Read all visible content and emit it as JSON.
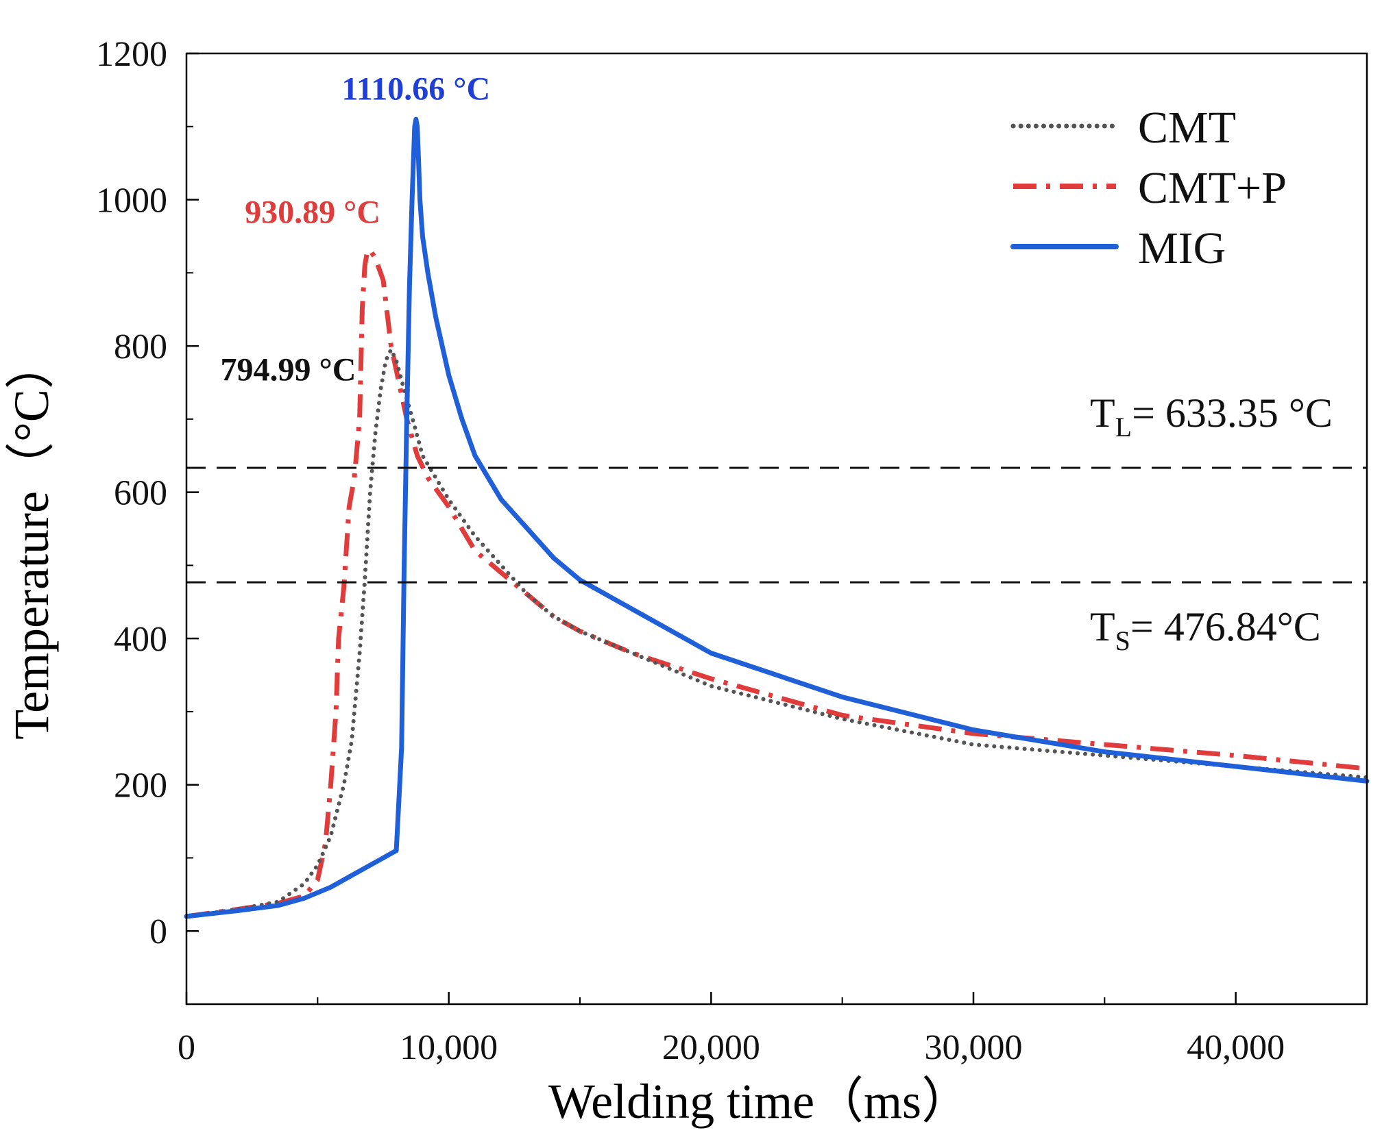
{
  "chart_data": {
    "type": "line",
    "title": "",
    "xlabel": "Welding time（ms）",
    "ylabel": "Temperature（°C）",
    "xlim": [
      0,
      45000
    ],
    "ylim": [
      -100,
      1200
    ],
    "x_ticks": [
      0,
      10000,
      20000,
      30000,
      40000
    ],
    "x_tick_labels": [
      "0",
      "10,000",
      "20,000",
      "30,000",
      "40,000"
    ],
    "y_ticks": [
      0,
      200,
      400,
      600,
      800,
      1000,
      1200
    ],
    "y_tick_labels": [
      "0",
      "200",
      "400",
      "600",
      "800",
      "1000",
      "1200"
    ],
    "grid": false,
    "legend_position": "top-right",
    "series": [
      {
        "name": "CMT",
        "color": "#555555",
        "style": "dotted",
        "x": [
          0,
          2000,
          3500,
          4500,
          5000,
          5500,
          6000,
          6300,
          6600,
          6800,
          7000,
          7200,
          7400,
          7600,
          7800,
          8000,
          8300,
          8700,
          9000,
          9500,
          10000,
          11000,
          12000,
          13000,
          14000,
          15000,
          17000,
          20000,
          25000,
          30000,
          35000,
          40000,
          45000
        ],
        "values": [
          20,
          30,
          40,
          65,
          90,
          130,
          200,
          260,
          380,
          480,
          600,
          680,
          740,
          780,
          795,
          780,
          740,
          690,
          650,
          620,
          590,
          540,
          500,
          460,
          430,
          410,
          380,
          335,
          290,
          255,
          240,
          225,
          210
        ]
      },
      {
        "name": "CMT+P",
        "color": "#e03c3c",
        "style": "dashdot",
        "x": [
          0,
          2000,
          3500,
          4500,
          5000,
          5300,
          5500,
          5700,
          5800,
          6000,
          6200,
          6400,
          6600,
          6700,
          6800,
          6900,
          7000,
          7200,
          7500,
          7800,
          8100,
          8400,
          8800,
          9200,
          10000,
          11000,
          12000,
          13000,
          14000,
          15000,
          17000,
          20000,
          25000,
          30000,
          35000,
          40000,
          45000
        ],
        "values": [
          20,
          30,
          38,
          48,
          70,
          120,
          200,
          300,
          400,
          470,
          580,
          620,
          700,
          850,
          910,
          930,
          931,
          920,
          890,
          800,
          750,
          700,
          650,
          620,
          580,
          520,
          490,
          460,
          430,
          410,
          380,
          345,
          295,
          270,
          255,
          240,
          222
        ]
      },
      {
        "name": "MIG",
        "color": "#1f5fd8",
        "style": "solid",
        "x": [
          0,
          2000,
          3500,
          4500,
          5500,
          6500,
          7500,
          8000,
          8200,
          8300,
          8400,
          8500,
          8600,
          8700,
          8750,
          8800,
          8850,
          8900,
          9000,
          9200,
          9500,
          10000,
          10500,
          11000,
          12000,
          13000,
          14000,
          15000,
          17000,
          20000,
          25000,
          30000,
          35000,
          40000,
          45000
        ],
        "values": [
          20,
          28,
          35,
          45,
          60,
          80,
          100,
          110,
          250,
          500,
          700,
          880,
          1000,
          1100,
          1110,
          1100,
          1050,
          1000,
          950,
          900,
          840,
          760,
          700,
          650,
          590,
          550,
          510,
          480,
          440,
          380,
          320,
          275,
          245,
          225,
          205
        ]
      }
    ],
    "reference_lines": [
      {
        "y": 633.35,
        "label_main": "T",
        "label_sub": "L",
        "label_rest": "= 633.35 °C"
      },
      {
        "y": 476.84,
        "label_main": "T",
        "label_sub": "S",
        "label_rest": "= 476.84°C"
      }
    ],
    "annotations": [
      {
        "text": "1110.66 °C",
        "color": "#1f3fd8",
        "x": 8750,
        "y": 1110.66
      },
      {
        "text": "930.89 °C",
        "color": "#e03c3c",
        "x": 6900,
        "y": 930.89
      },
      {
        "text": "794.99 °C",
        "color": "#111111",
        "x": 7800,
        "y": 794.99
      }
    ]
  }
}
